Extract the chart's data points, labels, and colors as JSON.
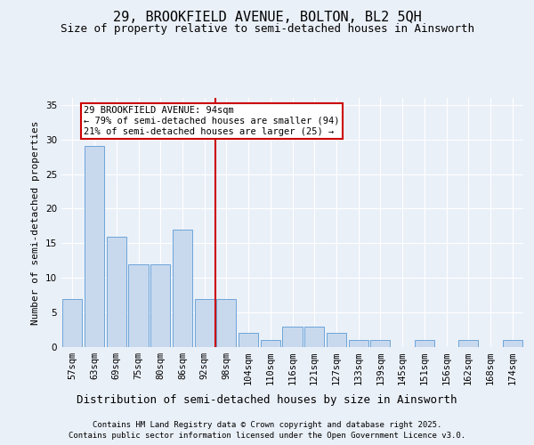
{
  "title_line1": "29, BROOKFIELD AVENUE, BOLTON, BL2 5QH",
  "title_line2": "Size of property relative to semi-detached houses in Ainsworth",
  "xlabel": "Distribution of semi-detached houses by size in Ainsworth",
  "ylabel": "Number of semi-detached properties",
  "categories": [
    "57sqm",
    "63sqm",
    "69sqm",
    "75sqm",
    "80sqm",
    "86sqm",
    "92sqm",
    "98sqm",
    "104sqm",
    "110sqm",
    "116sqm",
    "121sqm",
    "127sqm",
    "133sqm",
    "139sqm",
    "145sqm",
    "151sqm",
    "156sqm",
    "162sqm",
    "168sqm",
    "174sqm"
  ],
  "values": [
    7,
    29,
    16,
    12,
    12,
    17,
    7,
    7,
    2,
    1,
    3,
    3,
    2,
    1,
    1,
    0,
    1,
    0,
    1,
    0,
    1
  ],
  "bar_color": "#c8d9ee",
  "bar_edge_color": "#5b9bd5",
  "red_line_x": 6.5,
  "red_line_color": "#cc0000",
  "annotation_line1": "29 BROOKFIELD AVENUE: 94sqm",
  "annotation_line2": "← 79% of semi-detached houses are smaller (94)",
  "annotation_line3": "21% of semi-detached houses are larger (25) →",
  "annotation_box_color": "#ffffff",
  "annotation_box_edge": "#cc0000",
  "ylim": [
    0,
    36
  ],
  "yticks": [
    0,
    5,
    10,
    15,
    20,
    25,
    30,
    35
  ],
  "bg_color": "#eaf0f8",
  "plot_bg_color": "#eaf0f8",
  "grid_color": "#ffffff",
  "footer_line1": "Contains HM Land Registry data © Crown copyright and database right 2025.",
  "footer_line2": "Contains public sector information licensed under the Open Government Licence v3.0.",
  "title_fontsize": 11,
  "subtitle_fontsize": 9,
  "tick_fontsize": 7.5,
  "xlabel_fontsize": 9,
  "ylabel_fontsize": 8,
  "footer_fontsize": 6.5,
  "annot_fontsize": 7.5
}
